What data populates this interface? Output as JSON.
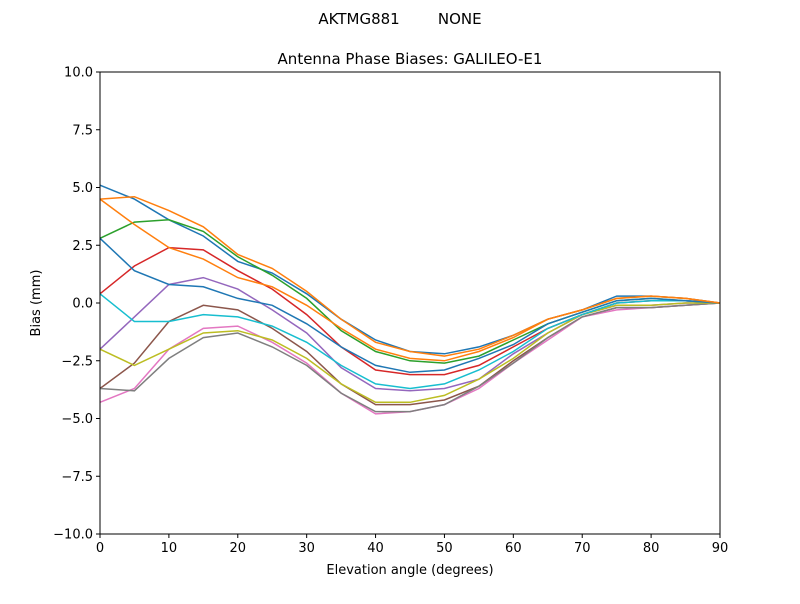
{
  "chart_data": {
    "type": "line",
    "suptitle": "AKTMG881        NONE",
    "title": "Antenna Phase Biases: GALILEO-E1",
    "xlabel": "Elevation angle (degrees)",
    "ylabel": "Bias (mm)",
    "xlim": [
      0,
      90
    ],
    "ylim": [
      -10,
      10
    ],
    "grid": false,
    "x_ticks": [
      "0",
      "10",
      "20",
      "30",
      "40",
      "50",
      "60",
      "70",
      "80",
      "90"
    ],
    "y_ticks": [
      "−10.0",
      "−7.5",
      "−5.0",
      "−2.5",
      "0.0",
      "2.5",
      "5.0",
      "7.5",
      "10.0"
    ],
    "x": [
      0,
      5,
      10,
      15,
      20,
      25,
      30,
      35,
      40,
      45,
      50,
      55,
      60,
      65,
      70,
      75,
      80,
      85,
      90
    ],
    "colors": [
      "#1f77b4",
      "#ff7f0e",
      "#2ca02c",
      "#d62728",
      "#9467bd",
      "#8c564b",
      "#e377c2",
      "#7f7f7f",
      "#bcbd22",
      "#17becf"
    ],
    "series": [
      {
        "values": [
          5.1,
          4.5,
          3.6,
          2.9,
          1.8,
          1.3,
          0.4,
          -0.7,
          -1.6,
          -2.1,
          -2.2,
          -1.9,
          -1.4,
          -0.7,
          -0.3,
          0.3,
          0.3,
          0.2,
          0
        ]
      },
      {
        "values": [
          4.5,
          4.6,
          4.0,
          3.3,
          2.1,
          1.5,
          0.5,
          -0.7,
          -1.7,
          -2.1,
          -2.3,
          -2.0,
          -1.4,
          -0.7,
          -0.3,
          0.2,
          0.3,
          0.2,
          0
        ]
      },
      {
        "values": [
          2.8,
          3.5,
          3.6,
          3.1,
          2.0,
          1.2,
          0.2,
          -1.2,
          -2.1,
          -2.5,
          -2.6,
          -2.3,
          -1.6,
          -0.9,
          -0.4,
          0.1,
          0.2,
          0.1,
          0
        ]
      },
      {
        "values": [
          0.4,
          1.6,
          2.4,
          2.3,
          1.4,
          0.6,
          -0.5,
          -1.9,
          -2.9,
          -3.1,
          -3.1,
          -2.7,
          -1.9,
          -1.1,
          -0.5,
          0,
          0.1,
          0.1,
          0
        ]
      },
      {
        "values": [
          -2.0,
          -0.6,
          0.8,
          1.1,
          0.6,
          -0.3,
          -1.3,
          -2.8,
          -3.7,
          -3.8,
          -3.7,
          -3.3,
          -2.2,
          -1.3,
          -0.5,
          -0.1,
          -0.1,
          0,
          0
        ]
      },
      {
        "values": [
          -3.7,
          -2.6,
          -0.8,
          -0.1,
          -0.3,
          -1.1,
          -2.1,
          -3.5,
          -4.4,
          -4.4,
          -4.2,
          -3.6,
          -2.5,
          -1.5,
          -0.6,
          -0.2,
          -0.2,
          -0.1,
          0
        ]
      },
      {
        "values": [
          -4.3,
          -3.7,
          -2.0,
          -1.1,
          -1.0,
          -1.7,
          -2.6,
          -3.9,
          -4.8,
          -4.7,
          -4.4,
          -3.7,
          -2.6,
          -1.6,
          -0.6,
          -0.3,
          -0.2,
          -0.1,
          0
        ]
      },
      {
        "values": [
          -3.7,
          -3.8,
          -2.4,
          -1.5,
          -1.3,
          -1.9,
          -2.7,
          -3.9,
          -4.7,
          -4.7,
          -4.4,
          -3.6,
          -2.6,
          -1.5,
          -0.6,
          -0.2,
          -0.2,
          -0.1,
          0
        ]
      },
      {
        "values": [
          -2.0,
          -2.7,
          -2.0,
          -1.3,
          -1.2,
          -1.6,
          -2.4,
          -3.5,
          -4.3,
          -4.3,
          -4.0,
          -3.3,
          -2.4,
          -1.3,
          -0.5,
          -0.1,
          -0.1,
          0,
          0
        ]
      },
      {
        "values": [
          0.4,
          -0.8,
          -0.8,
          -0.5,
          -0.6,
          -1.0,
          -1.7,
          -2.7,
          -3.5,
          -3.7,
          -3.5,
          -2.9,
          -2.1,
          -1.1,
          -0.5,
          0,
          0.1,
          0.1,
          0
        ]
      },
      {
        "values": [
          2.8,
          1.4,
          0.8,
          0.7,
          0.2,
          -0.1,
          -0.9,
          -1.9,
          -2.7,
          -3.0,
          -2.9,
          -2.4,
          -1.8,
          -0.9,
          -0.4,
          0.1,
          0.2,
          0.1,
          0
        ]
      },
      {
        "values": [
          4.5,
          3.4,
          2.4,
          1.9,
          1.1,
          0.7,
          -0.1,
          -1.1,
          -2.0,
          -2.4,
          -2.5,
          -2.1,
          -1.5,
          -0.7,
          -0.3,
          0.2,
          0.3,
          0.2,
          0
        ]
      }
    ]
  }
}
